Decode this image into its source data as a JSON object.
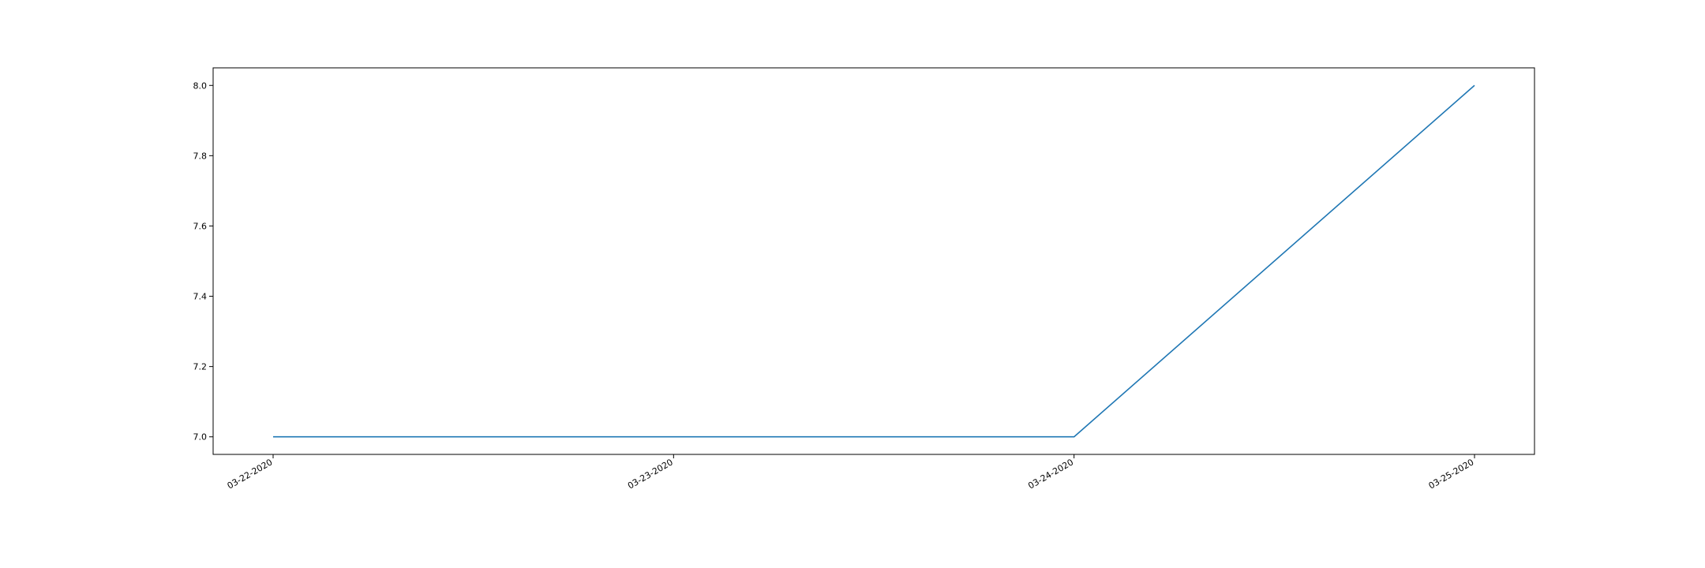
{
  "chart_data": {
    "type": "line",
    "title": "",
    "xlabel": "",
    "ylabel": "",
    "x": [
      "03-22-2020",
      "03-23-2020",
      "03-24-2020",
      "03-25-2020"
    ],
    "series": [
      {
        "values": [
          7.0,
          7.0,
          7.0,
          8.0
        ],
        "color": "#1f77b4"
      }
    ],
    "ylim": [
      6.95,
      8.05
    ],
    "yticks": [
      7.0,
      7.2,
      7.4,
      7.6,
      7.8,
      8.0
    ],
    "ytick_labels": [
      "7.0",
      "7.2",
      "7.4",
      "7.6",
      "7.8",
      "8.0"
    ],
    "grid": false,
    "legend": "none"
  }
}
